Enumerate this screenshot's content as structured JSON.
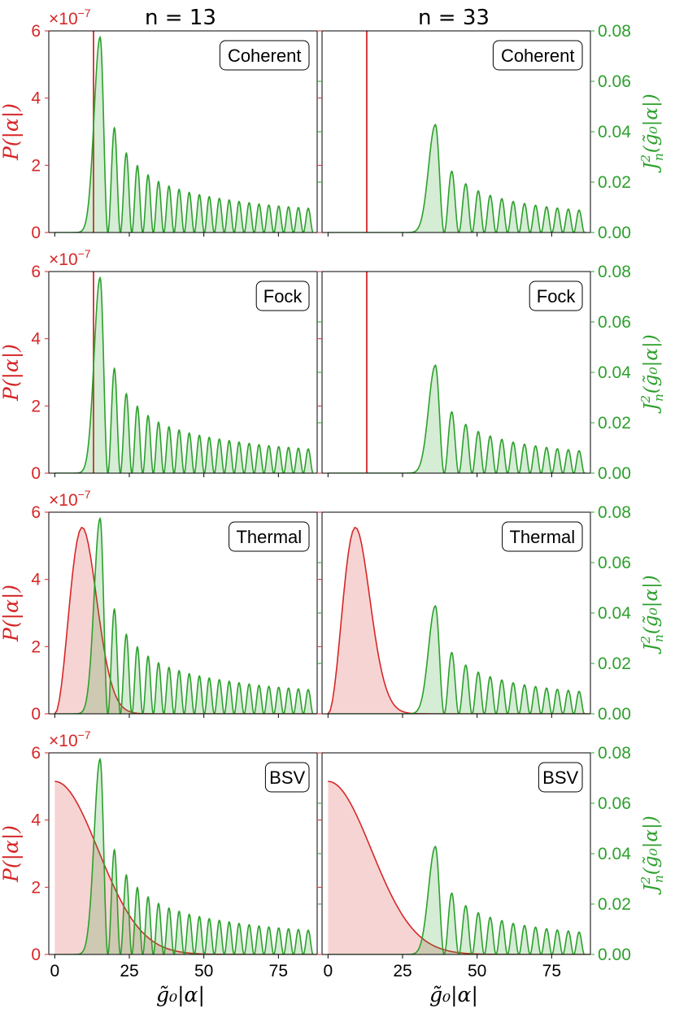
{
  "chart_data": {
    "type": "line",
    "layout": "4 rows x 2 columns",
    "columns": [
      {
        "title": "n = 13",
        "n": 13,
        "vertical_line_x": 13
      },
      {
        "title": "n = 33",
        "n": 33,
        "vertical_line_x": 13
      }
    ],
    "rows": [
      {
        "label": "Coherent",
        "distribution": "delta"
      },
      {
        "label": "Fock",
        "distribution": "delta"
      },
      {
        "label": "Thermal",
        "distribution": "thermal",
        "peak_x": 9.2,
        "peak_y": 5.55e-07
      },
      {
        "label": "BSV",
        "distribution": "bsv",
        "start_y": 5.15e-07,
        "sigma": 14.5
      }
    ],
    "xlabel": "g̃₀|α|",
    "xlim": [
      -2,
      88
    ],
    "xticks": [
      0,
      25,
      50,
      75
    ],
    "left_axis": {
      "ylabel": "P(|α|)",
      "ylim": [
        0,
        6e-07
      ],
      "ticks": [
        0,
        2,
        4,
        6
      ],
      "multiplier_base": "×10",
      "multiplier_exp": "−7",
      "color": "#d62728"
    },
    "right_axis": {
      "ylabel_main": "J",
      "ylabel_sup": "2",
      "ylabel_sub": "n",
      "ylabel_rest": "(g̃₀|α|)",
      "ylim": [
        0,
        0.08
      ],
      "ticks": [
        "0.00",
        "0.02",
        "0.04",
        "0.06",
        "0.08"
      ],
      "color": "#2ca02c"
    },
    "bessel_peaks": {
      "n13": {
        "x": [
          15.2,
          20.0,
          24.0,
          27.7,
          31.3,
          34.8,
          38.3,
          41.7,
          45.1,
          48.5,
          51.8,
          55.2,
          58.5,
          61.8,
          65.2,
          68.5,
          71.8,
          75.1,
          78.4,
          81.7,
          85.0
        ],
        "y": [
          0.0775,
          0.0415,
          0.0315,
          0.0265,
          0.0228,
          0.0202,
          0.0184,
          0.0171,
          0.0159,
          0.015,
          0.0142,
          0.0135,
          0.0129,
          0.0123,
          0.0118,
          0.0113,
          0.0109,
          0.0105,
          0.0102,
          0.0099,
          0.0096
        ]
      },
      "n33": {
        "x": [
          36.0,
          41.5,
          46.2,
          50.4,
          54.4,
          58.3,
          62.1,
          65.9,
          69.6,
          73.3,
          76.9,
          80.6,
          84.2
        ],
        "y": [
          0.0428,
          0.0243,
          0.0193,
          0.0165,
          0.0147,
          0.0134,
          0.0123,
          0.0115,
          0.0108,
          0.0102,
          0.0097,
          0.0093,
          0.0089
        ]
      },
      "data_end_x": 86.5
    }
  }
}
